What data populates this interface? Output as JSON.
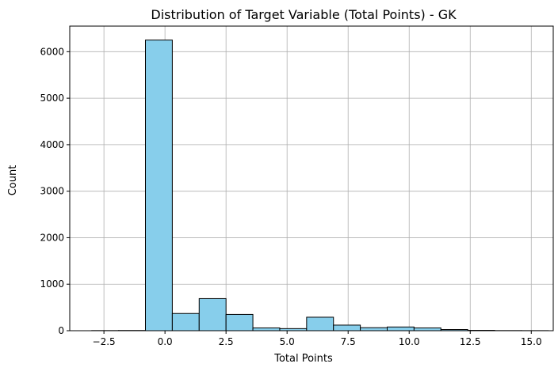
{
  "chart_data": {
    "type": "histogram",
    "title": "Distribution of Target Variable (Total Points) - GK",
    "xlabel": "Total Points",
    "ylabel": "Count",
    "xlim": [
      -3.9,
      15.9
    ],
    "ylim": [
      0,
      6550
    ],
    "xticks": [
      -2.5,
      0.0,
      2.5,
      5.0,
      7.5,
      10.0,
      12.5,
      15.0
    ],
    "xtick_labels": [
      "−2.5",
      "0.0",
      "2.5",
      "5.0",
      "7.5",
      "10.0",
      "12.5",
      "15.0"
    ],
    "yticks": [
      0,
      1000,
      2000,
      3000,
      4000,
      5000,
      6000
    ],
    "ytick_labels": [
      "0",
      "1000",
      "2000",
      "3000",
      "4000",
      "5000",
      "6000"
    ],
    "grid": true,
    "bar_color": "#87CEEB",
    "edge_color": "#000000",
    "bins": [
      {
        "x0": -3.0,
        "x1": -1.9,
        "count": 3
      },
      {
        "x0": -1.9,
        "x1": -0.8,
        "count": 5
      },
      {
        "x0": -0.8,
        "x1": 0.3,
        "count": 6250
      },
      {
        "x0": 0.3,
        "x1": 1.4,
        "count": 370
      },
      {
        "x0": 1.4,
        "x1": 2.5,
        "count": 690
      },
      {
        "x0": 2.5,
        "x1": 3.6,
        "count": 350
      },
      {
        "x0": 3.6,
        "x1": 4.7,
        "count": 60
      },
      {
        "x0": 4.7,
        "x1": 5.8,
        "count": 45
      },
      {
        "x0": 5.8,
        "x1": 6.9,
        "count": 290
      },
      {
        "x0": 6.9,
        "x1": 8.0,
        "count": 120
      },
      {
        "x0": 8.0,
        "x1": 9.1,
        "count": 65
      },
      {
        "x0": 9.1,
        "x1": 10.2,
        "count": 80
      },
      {
        "x0": 10.2,
        "x1": 11.3,
        "count": 60
      },
      {
        "x0": 11.3,
        "x1": 12.4,
        "count": 25
      },
      {
        "x0": 12.4,
        "x1": 13.5,
        "count": 8
      },
      {
        "x0": 13.5,
        "x1": 14.6,
        "count": 3
      },
      {
        "x0": 14.6,
        "x1": 15.7,
        "count": 2
      }
    ]
  }
}
